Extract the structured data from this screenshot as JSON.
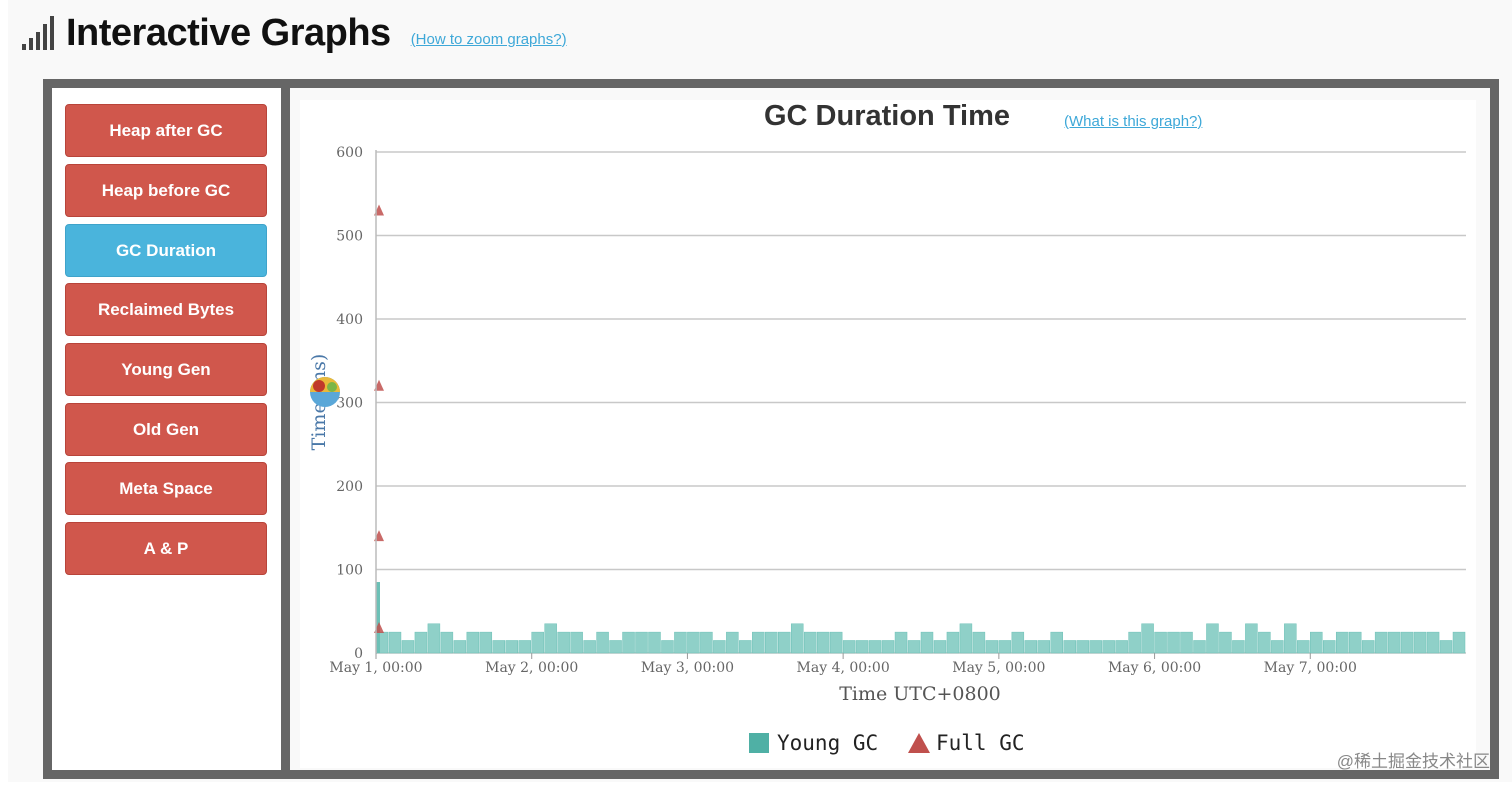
{
  "header": {
    "title": "Interactive Graphs",
    "zoom_link": "(How to zoom graphs?)"
  },
  "nav": {
    "items": [
      {
        "label": "Heap after GC",
        "active": false
      },
      {
        "label": "Heap before GC",
        "active": false
      },
      {
        "label": "GC Duration",
        "active": true
      },
      {
        "label": "Reclaimed Bytes",
        "active": false
      },
      {
        "label": "Young Gen",
        "active": false
      },
      {
        "label": "Old Gen",
        "active": false
      },
      {
        "label": "Meta Space",
        "active": false
      },
      {
        "label": "A & P",
        "active": false
      }
    ]
  },
  "chart": {
    "what_link": "(What is this graph?)"
  },
  "watermark": "@稀土掘金技术社区",
  "colors": {
    "nav_button": "#d0574c",
    "nav_active": "#4ab4dc",
    "young_gc": "#4fb0a5",
    "full_gc": "#c0504d",
    "link": "#3ea8d8"
  },
  "chart_data": {
    "type": "bar",
    "title": "GC Duration Time",
    "ylabel": "Time (ms)",
    "xlabel": "Time UTC+0800",
    "ylim": [
      0,
      600
    ],
    "yticks": [
      0,
      100,
      200,
      300,
      400,
      500,
      600
    ],
    "xlim": [
      "2023-05-01 00:00",
      "2023-05-08 00:00"
    ],
    "xtick_labels": [
      "May 1, 00:00",
      "May 2, 00:00",
      "May 3, 00:00",
      "May 4, 00:00",
      "May 5, 00:00",
      "May 6, 00:00",
      "May 7, 00:00"
    ],
    "grid": true,
    "legend_position": "bottom-center",
    "series": [
      {
        "name": "Young GC",
        "type": "bar",
        "x": [
          "2023-05-01 00:00",
          "2023-05-01 02:00",
          "2023-05-01 04:00",
          "2023-05-01 06:00",
          "2023-05-01 08:00",
          "2023-05-01 10:00",
          "2023-05-01 12:00",
          "2023-05-01 14:00",
          "2023-05-01 16:00",
          "2023-05-01 18:00",
          "2023-05-01 20:00",
          "2023-05-01 22:00",
          "2023-05-02 00:00",
          "2023-05-02 02:00",
          "2023-05-02 04:00",
          "2023-05-02 06:00",
          "2023-05-02 08:00",
          "2023-05-02 10:00",
          "2023-05-02 12:00",
          "2023-05-02 14:00",
          "2023-05-02 16:00",
          "2023-05-02 18:00",
          "2023-05-02 20:00",
          "2023-05-02 22:00",
          "2023-05-03 00:00",
          "2023-05-03 02:00",
          "2023-05-03 04:00",
          "2023-05-03 06:00",
          "2023-05-03 08:00",
          "2023-05-03 10:00",
          "2023-05-03 12:00",
          "2023-05-03 14:00",
          "2023-05-03 16:00",
          "2023-05-03 18:00",
          "2023-05-03 20:00",
          "2023-05-03 22:00",
          "2023-05-04 00:00",
          "2023-05-04 02:00",
          "2023-05-04 04:00",
          "2023-05-04 06:00",
          "2023-05-04 08:00",
          "2023-05-04 10:00",
          "2023-05-04 12:00",
          "2023-05-04 14:00",
          "2023-05-04 16:00",
          "2023-05-04 18:00",
          "2023-05-04 20:00",
          "2023-05-04 22:00",
          "2023-05-05 00:00",
          "2023-05-05 02:00",
          "2023-05-05 04:00",
          "2023-05-05 06:00",
          "2023-05-05 08:00",
          "2023-05-05 10:00",
          "2023-05-05 12:00",
          "2023-05-05 14:00",
          "2023-05-05 16:00",
          "2023-05-05 18:00",
          "2023-05-05 20:00",
          "2023-05-05 22:00",
          "2023-05-06 00:00",
          "2023-05-06 02:00",
          "2023-05-06 04:00",
          "2023-05-06 06:00",
          "2023-05-06 08:00",
          "2023-05-06 10:00",
          "2023-05-06 12:00",
          "2023-05-06 14:00",
          "2023-05-06 16:00",
          "2023-05-06 18:00",
          "2023-05-06 20:00",
          "2023-05-06 22:00",
          "2023-05-07 00:00",
          "2023-05-07 02:00",
          "2023-05-07 04:00",
          "2023-05-07 06:00",
          "2023-05-07 08:00",
          "2023-05-07 10:00",
          "2023-05-07 12:00",
          "2023-05-07 14:00",
          "2023-05-07 16:00",
          "2023-05-07 18:00",
          "2023-05-07 20:00",
          "2023-05-07 22:00"
        ],
        "values": [
          25,
          25,
          15,
          25,
          35,
          25,
          15,
          25,
          25,
          15,
          15,
          15,
          25,
          35,
          25,
          25,
          15,
          25,
          15,
          25,
          25,
          25,
          15,
          25,
          25,
          25,
          15,
          25,
          15,
          25,
          25,
          25,
          35,
          25,
          25,
          25,
          15,
          15,
          15,
          15,
          25,
          15,
          25,
          15,
          25,
          35,
          25,
          15,
          15,
          25,
          15,
          15,
          25,
          15,
          15,
          15,
          15,
          15,
          25,
          35,
          25,
          25,
          25,
          15,
          35,
          25,
          15,
          35,
          25,
          15,
          35,
          15,
          25,
          15,
          25,
          25,
          15,
          25,
          25,
          25,
          25,
          25,
          15,
          25
        ]
      },
      {
        "name": "Full GC",
        "type": "scatter",
        "marker": "triangle",
        "x": [
          "2023-05-01 00:00",
          "2023-05-01 00:00",
          "2023-05-01 00:00",
          "2023-05-01 00:00"
        ],
        "values": [
          530,
          320,
          140,
          30
        ]
      }
    ],
    "young_gc_startup_spikes": [
      {
        "x": "2023-05-01 00:00",
        "value": 85
      },
      {
        "x": "2023-05-01 00:00",
        "value": 55
      }
    ]
  }
}
